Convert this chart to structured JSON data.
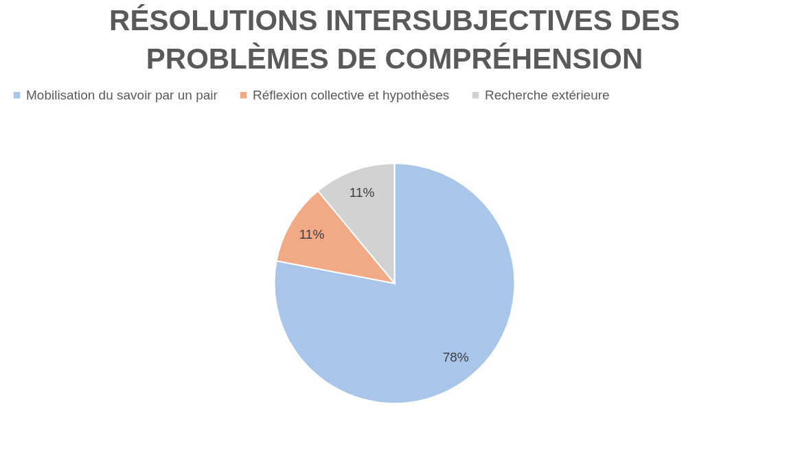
{
  "chart_data": {
    "type": "pie",
    "title": "RÉSOLUTIONS INTERSUBJECTIVES DES PROBLÈMES DE COMPRÉHENSION",
    "categories": [
      "Mobilisation du savoir par un pair",
      "Réflexion collective et hypothèses",
      "Recherche extérieure"
    ],
    "values": [
      78,
      11,
      11
    ],
    "colors": [
      "#a9c6ea",
      "#f2a985",
      "#d2d2d2"
    ],
    "value_labels": [
      "78%",
      "11%",
      "11%"
    ],
    "legend": "top"
  }
}
